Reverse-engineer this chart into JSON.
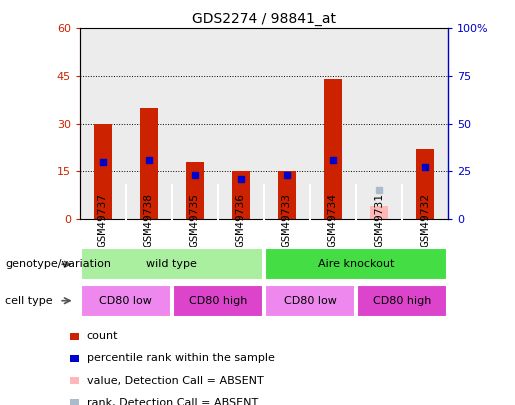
{
  "title": "GDS2274 / 98841_at",
  "samples": [
    "GSM49737",
    "GSM49738",
    "GSM49735",
    "GSM49736",
    "GSM49733",
    "GSM49734",
    "GSM49731",
    "GSM49732"
  ],
  "count_values": [
    30,
    35,
    18,
    15,
    15,
    44,
    4,
    22
  ],
  "rank_values": [
    30,
    31,
    23,
    21,
    23,
    31,
    15,
    27
  ],
  "absent_flags": [
    false,
    false,
    false,
    false,
    false,
    false,
    true,
    false
  ],
  "ylim_left": [
    0,
    60
  ],
  "ylim_right": [
    0,
    100
  ],
  "yticks_left": [
    0,
    15,
    30,
    45,
    60
  ],
  "yticks_right": [
    0,
    25,
    50,
    75,
    100
  ],
  "ytick_labels_left": [
    "0",
    "15",
    "30",
    "45",
    "60"
  ],
  "ytick_labels_right": [
    "0",
    "25",
    "50",
    "75",
    "100%"
  ],
  "bar_color_normal": "#CC2200",
  "bar_color_absent": "#FFB8B8",
  "square_color_normal": "#0000CC",
  "square_color_absent": "#AABBCC",
  "genotype_groups": [
    {
      "label": "wild type",
      "start": 0,
      "end": 4,
      "color": "#AAEEA0"
    },
    {
      "label": "Aire knockout",
      "start": 4,
      "end": 8,
      "color": "#44DD44"
    }
  ],
  "cell_type_groups": [
    {
      "label": "CD80 low",
      "start": 0,
      "end": 2,
      "color": "#EE88EE"
    },
    {
      "label": "CD80 high",
      "start": 2,
      "end": 4,
      "color": "#DD44CC"
    },
    {
      "label": "CD80 low",
      "start": 4,
      "end": 6,
      "color": "#EE88EE"
    },
    {
      "label": "CD80 high",
      "start": 6,
      "end": 8,
      "color": "#DD44CC"
    }
  ],
  "legend_items": [
    {
      "label": "count",
      "color": "#CC2200"
    },
    {
      "label": "percentile rank within the sample",
      "color": "#0000CC"
    },
    {
      "label": "value, Detection Call = ABSENT",
      "color": "#FFB8B8"
    },
    {
      "label": "rank, Detection Call = ABSENT",
      "color": "#AABBCC"
    }
  ],
  "bar_width": 0.4,
  "ylabel_left_color": "#CC2200",
  "ylabel_right_color": "#0000CC",
  "title_fontsize": 10,
  "tick_fontsize": 8,
  "annot_fontsize": 8,
  "legend_fontsize": 8
}
